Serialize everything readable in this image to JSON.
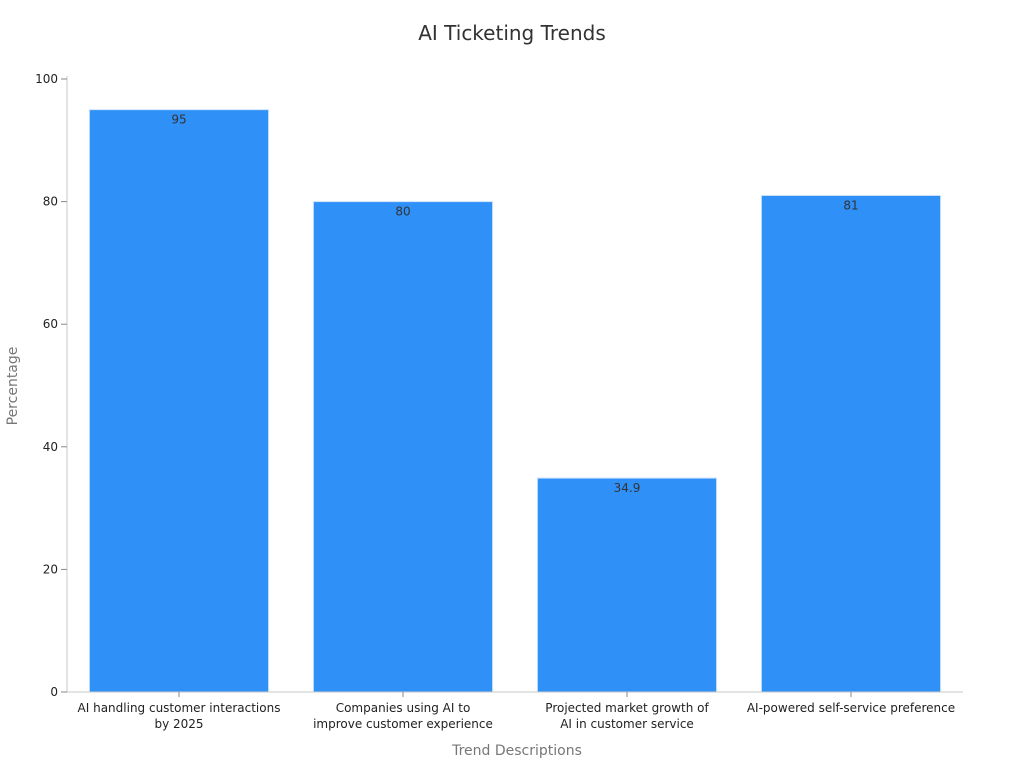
{
  "chart_data": {
    "type": "bar",
    "title": "AI Ticketing Trends",
    "xlabel": "Trend Descriptions",
    "ylabel": "Percentage",
    "categories": [
      [
        "AI handling customer interactions",
        "by 2025"
      ],
      [
        "Companies using AI to",
        "improve customer experience"
      ],
      [
        "Projected market growth of",
        "AI in customer service"
      ],
      [
        "AI-powered self-service preference"
      ]
    ],
    "values": [
      95,
      80,
      34.9,
      81
    ],
    "data_labels": [
      "95",
      "80",
      "34.9",
      "81"
    ],
    "yticks": [
      "0",
      "20",
      "40",
      "60",
      "80",
      "100"
    ],
    "ylim": [
      0,
      100
    ],
    "grid": false,
    "bar_color": "#2f90f8",
    "bar_edge_color": "#cfe3fb"
  }
}
